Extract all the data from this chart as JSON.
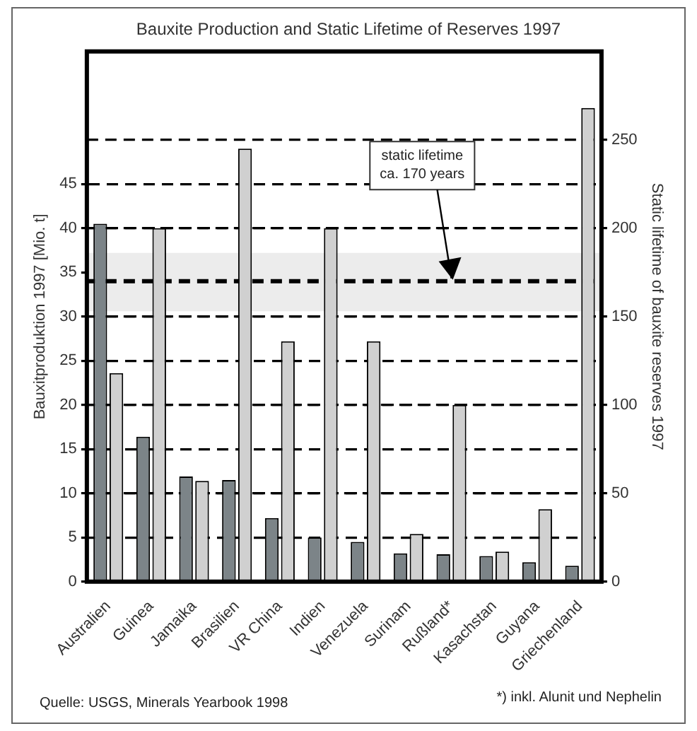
{
  "chart_data": {
    "type": "bar",
    "title": "Bauxite Production and Static Lifetime of Reserves 1997",
    "ylabel": "Bauxitproduktion 1997 [Mio. t]",
    "y2label": "Static lifetime of bauxite reserves 1997",
    "categories": [
      "Australien",
      "Guinea",
      "Jamaika",
      "Brasilien",
      "VR China",
      "Indien",
      "Venezuela",
      "Surinam",
      "Rußland*",
      "Kasachstan",
      "Guyana",
      "Griechenland"
    ],
    "series": [
      {
        "color": "#7c8488",
        "values": [
          40.5,
          16.4,
          11.9,
          11.5,
          7.2,
          5,
          4.5,
          3.2,
          3.1,
          2.9,
          2.2,
          1.8
        ]
      },
      {
        "color": "#d0d0d0",
        "axis": "y2",
        "values": [
          118,
          200,
          57,
          245,
          136,
          200,
          136,
          27,
          100,
          17,
          41,
          268
        ]
      }
    ],
    "ylim": [
      0,
      60
    ],
    "yticks": [
      0,
      5,
      10,
      15,
      20,
      25,
      30,
      35,
      40,
      45
    ],
    "y2lim": [
      0,
      300
    ],
    "y2ticks": [
      0,
      50,
      100,
      150,
      200,
      250
    ],
    "grid": true,
    "line_style": "dashed",
    "legend": false,
    "bands": [
      {
        "axis": "y2",
        "from": 153,
        "to": 186,
        "color": "#ececec"
      }
    ],
    "ref_lines": [
      {
        "axis": "y2",
        "value": 170,
        "color": "#000000",
        "line_style": "dashed"
      }
    ],
    "annotations": [
      {
        "text": "static lifetime\nca. 170 years",
        "x": "Rußland*",
        "y": 34
      },
      "Quelle: USGS, Minerals Yearbook 1998",
      "*) inkl. Alunit und Nephelin"
    ]
  }
}
